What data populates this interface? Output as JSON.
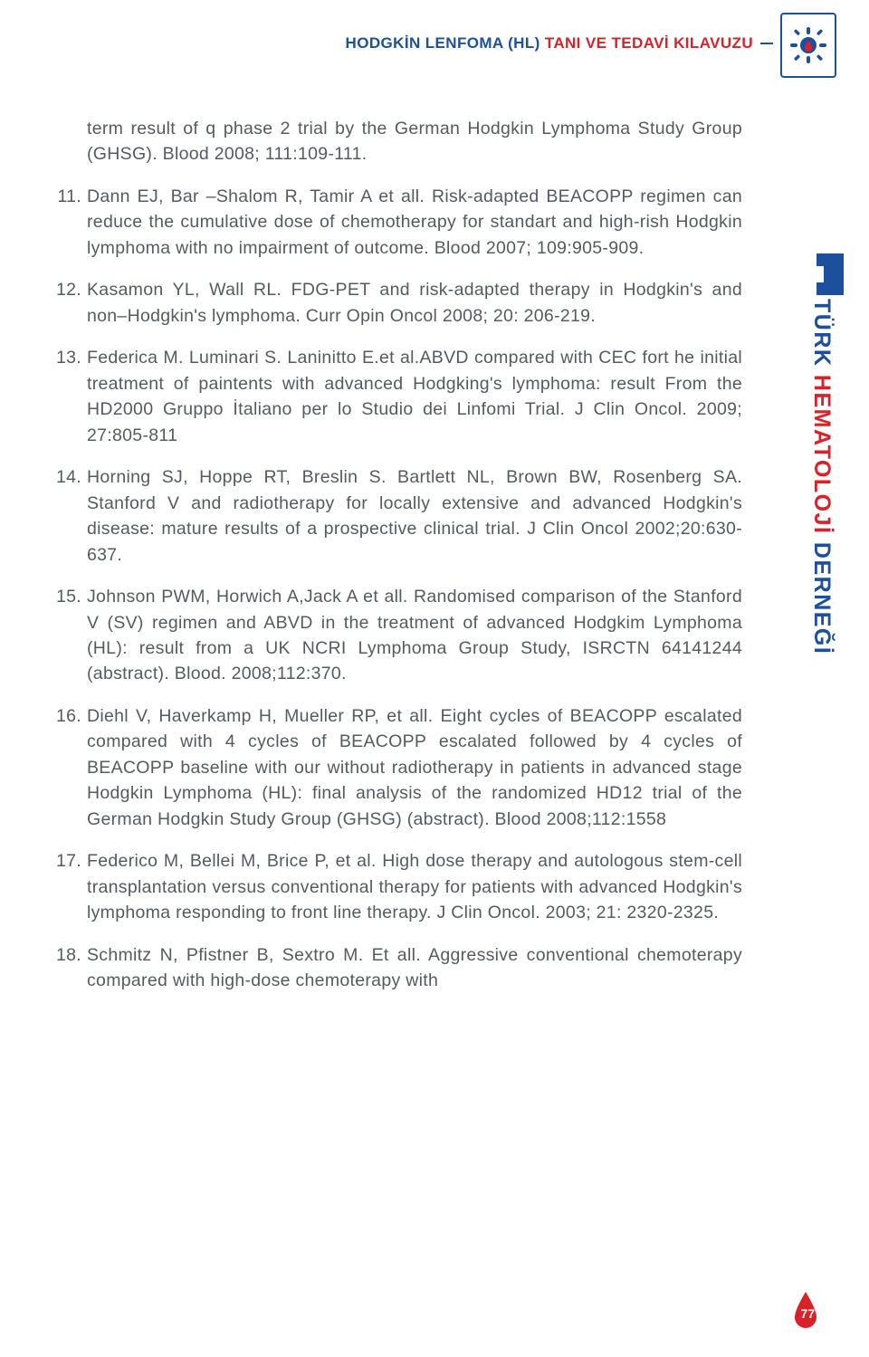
{
  "header": {
    "title_blue": "HODGKİN LENFOMA (HL) ",
    "title_red": "TANI VE TEDAVİ KILAVUZU"
  },
  "sidebar": {
    "line1": "TÜRK ",
    "line2": "HEMATOLOJİ ",
    "line3": "DERNEĞİ"
  },
  "colors": {
    "blue": "#1c4f9c",
    "red": "#d8222a",
    "text": "#555a60"
  },
  "page_number": "77",
  "references": [
    {
      "num": "",
      "text": "term result of q phase 2 trial by the German Hodgkin Lymphoma Study Group (GHSG). Blood 2008; 111:109-111.",
      "cont": true
    },
    {
      "num": "11.",
      "text": "Dann EJ, Bar –Shalom R, Tamir A et all. Risk-adapted BEACOPP regimen can reduce the cumulative dose of chemotherapy for standart and high-rish Hodgkin lymphoma with no impairment of outcome. Blood 2007; 109:905-909."
    },
    {
      "num": "12.",
      "text": "Kasamon YL, Wall RL. FDG-PET and risk-adapted therapy in Hodgkin's and non–Hodgkin's lymphoma.  Curr Opin Oncol 2008; 20: 206-219."
    },
    {
      "num": "13.",
      "text": "Federica M. Luminari S. Laninitto E.et al.ABVD compared with CEC fort he initial treatment of paintents with advanced Hodgking's lymphoma: result From the HD2000 Gruppo İtaliano per lo Studio dei Linfomi Trial. J Clin Oncol. 2009; 27:805-811"
    },
    {
      "num": "14.",
      "text": "Horning SJ, Hoppe RT, Breslin S. Bartlett NL, Brown BW, Rosenberg SA. Stanford V and radiotherapy for locally extensive and advanced Hodgkin's disease: mature results of a prospective clinical trial. J Clin Oncol 2002;20:630-637."
    },
    {
      "num": "15.",
      "text": "Johnson PWM, Horwich A,Jack A et all. Randomised comparison of the Stanford V (SV) regimen and ABVD in the treatment of advanced Hodgkim Lymphoma (HL): result from a UK NCRI Lymphoma Group Study, ISRCTN 64141244 (abstract). Blood. 2008;112:370."
    },
    {
      "num": "16.",
      "text": "Diehl V, Haverkamp H, Mueller RP, et all. Eight cycles of BEACOPP escalated compared with 4 cycles of BEACOPP escalated followed by 4 cycles of BEACOPP baseline with our without radiotherapy in patients in advanced stage Hodgkin Lymphoma (HL): final analysis of the randomized HD12 trial of the German Hodgkin Study Group (GHSG) (abstract). Blood 2008;112:1558"
    },
    {
      "num": "17.",
      "text": "Federico M,  Bellei M, Brice P, et al. High dose therapy and autologous stem-cell transplantation versus conventional therapy for patients with advanced Hodgkin's lymphoma responding to front line therapy. J Clin Oncol. 2003; 21: 2320-2325."
    },
    {
      "num": "18.",
      "text": "Schmitz N, Pfistner B, Sextro M. Et all. Aggressive conventional chemoterapy compared with high-dose chemoterapy with"
    }
  ]
}
